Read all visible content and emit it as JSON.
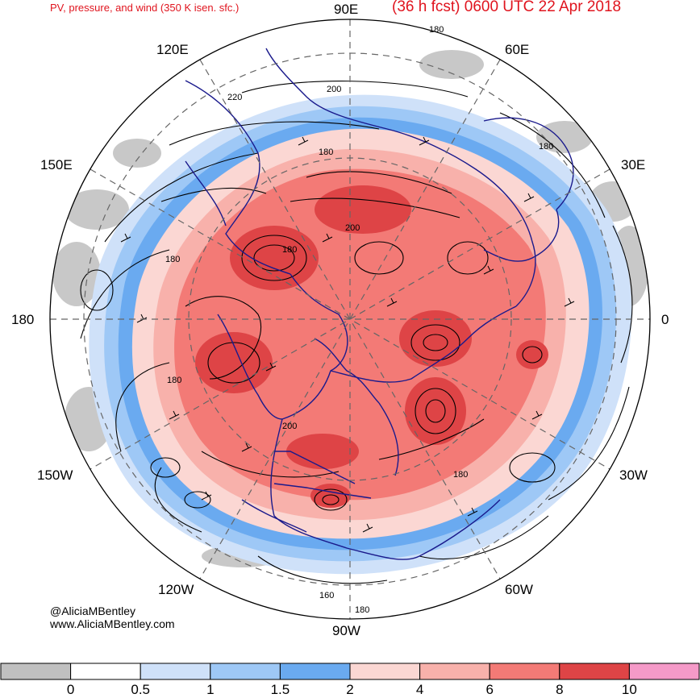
{
  "header": {
    "title_left": "PV, pressure, and wind (350 K isen. sfc.)",
    "title_right": "(36 h fcst) 0600 UTC 22 Apr 2018"
  },
  "map": {
    "longitude_labels": {
      "lon_90e": "90E",
      "lon_120e": "120E",
      "lon_60e": "60E",
      "lon_150e": "150E",
      "lon_30e": "30E",
      "lon_180": "180",
      "lon_0": "0",
      "lon_150w": "150W",
      "lon_30w": "30W",
      "lon_120w": "120W",
      "lon_60w": "60W",
      "lon_90w": "90W"
    },
    "contour_labels": [
      "220",
      "200",
      "180",
      "180",
      "200",
      "180",
      "180",
      "180",
      "200",
      "180",
      "160",
      "180",
      "180"
    ],
    "colors": {
      "land_outline": "#1a1a8c",
      "contour": "#000000",
      "gridline": "#666666"
    }
  },
  "credits": {
    "author": "@AliciaMBentley",
    "website": "www.AliciaMBentley.com"
  },
  "colorbar": {
    "bins": [
      {
        "color": "#c0c0c0"
      },
      {
        "color": "#ffffff"
      },
      {
        "color": "#cfe1f9"
      },
      {
        "color": "#9ec8f6"
      },
      {
        "color": "#6aaaf0"
      },
      {
        "color": "#fbd7d3"
      },
      {
        "color": "#f8b1ab"
      },
      {
        "color": "#f37a76"
      },
      {
        "color": "#de4446"
      },
      {
        "color": "#f59ac8"
      }
    ],
    "tick_labels": [
      "0",
      "0.5",
      "1",
      "1.5",
      "2",
      "4",
      "6",
      "8",
      "10"
    ]
  }
}
